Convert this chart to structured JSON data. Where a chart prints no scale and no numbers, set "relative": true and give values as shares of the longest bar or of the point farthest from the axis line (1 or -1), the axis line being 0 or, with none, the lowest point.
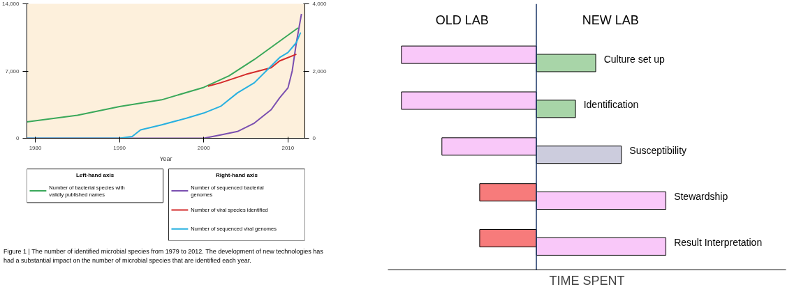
{
  "chart_data": [
    {
      "type": "line",
      "xlabel": "Year",
      "xlim": [
        1979,
        2012
      ],
      "xticks": [
        1980,
        1990,
        2000,
        2010
      ],
      "ylim": [
        0,
        14000
      ],
      "yticks": [
        {
          "value": 0,
          "label": "0"
        },
        {
          "value": 7000,
          "label": "7,000"
        },
        {
          "value": 14000,
          "label": "14,000"
        }
      ],
      "y2lim": [
        0,
        4000
      ],
      "y2ticks": [
        {
          "value": 0,
          "label": "0"
        },
        {
          "value": 2000,
          "label": "2,000"
        },
        {
          "value": 4000,
          "label": "4,000"
        }
      ],
      "legend": "bottom",
      "legend_title": [
        "Left-hand axis",
        "Right-hand axis"
      ],
      "annotations": [
        "Figure 1 | The number of identified microbial species from 1979 to 2012. The development of new technologies has had a substantial impact on the number of microbial species that are identified each year."
      ],
      "series": [
        {
          "name": "Number of bacterial species with validly published names",
          "color": "#3aa85a",
          "x": [
            1979,
            1985,
            1990,
            1995,
            2000,
            2003,
            2006,
            2009,
            2011.2
          ],
          "values": [
            1700,
            2400,
            3300,
            4000,
            5300,
            6500,
            8200,
            10100,
            11500
          ]
        },
        {
          "name": "Number of sequenced bacterial genomes",
          "color": "#7a4fb0",
          "axis": "y2",
          "x": [
            1979,
            1990,
            2000,
            2002,
            2004,
            2006,
            2008,
            2009,
            2010,
            2010.5,
            2011,
            2011.6
          ],
          "values": [
            0,
            0,
            0,
            100,
            200,
            450,
            850,
            1200,
            1500,
            2000,
            2850,
            3700
          ]
        },
        {
          "name": "Number of viral species identified",
          "color": "#d42a2a",
          "axis": "y2",
          "x": [
            2000.5,
            2002,
            2005,
            2008,
            2009,
            2011
          ],
          "values": [
            1550,
            1650,
            1900,
            2100,
            2300,
            2500
          ]
        },
        {
          "name": "Number of sequenced viral genomes",
          "color": "#27b0e0",
          "axis": "y2",
          "x": [
            1979,
            1990,
            1991.5,
            1992.5,
            1995,
            1998,
            2000,
            2002,
            2004,
            2006,
            2008,
            2009,
            2010,
            2011,
            2011.5
          ],
          "values": [
            0,
            0,
            50,
            250,
            400,
            600,
            750,
            950,
            1350,
            1650,
            2150,
            2400,
            2550,
            2850,
            3150
          ]
        }
      ]
    },
    {
      "type": "bar",
      "orientation": "horizontal",
      "relative": true,
      "xlabel": "TIME SPENT",
      "categories": [
        "Culture set up",
        "Identification",
        "Susceptibility",
        "Stewardship",
        "Result Interpretation"
      ],
      "ref_lines": [
        {
          "axis": "x",
          "value": 0
        }
      ],
      "series": [
        {
          "name": "OLD LAB",
          "colors": [
            "#f9c8f9",
            "#f9c8f9",
            "#f9c8f9",
            "#f77b7b",
            "#f77b7b"
          ],
          "values": [
            -1,
            -1,
            -0.7,
            -0.42,
            -0.42
          ]
        },
        {
          "name": "NEW LAB",
          "colors": [
            "#a8d5a8",
            "#a8d5a8",
            "#ccccdd",
            "#f9c8f9",
            "#f9c8f9"
          ],
          "values": [
            0.44,
            0.29,
            0.63,
            0.96,
            0.96
          ]
        }
      ]
    }
  ]
}
